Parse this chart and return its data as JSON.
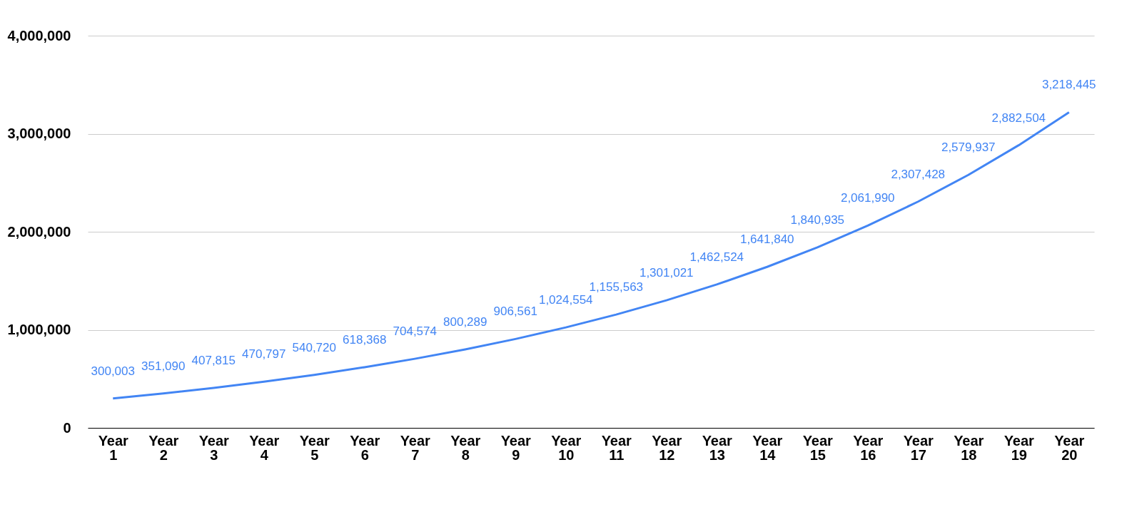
{
  "chart_data": {
    "type": "line",
    "categories": [
      "Year 1",
      "Year 2",
      "Year 3",
      "Year 4",
      "Year 5",
      "Year 6",
      "Year 7",
      "Year 8",
      "Year 9",
      "Year 10",
      "Year 11",
      "Year 12",
      "Year 13",
      "Year 14",
      "Year 15",
      "Year 16",
      "Year 17",
      "Year 18",
      "Year 19",
      "Year 20"
    ],
    "series": [
      {
        "color": "#4285f4",
        "value_labels": [
          "300,003",
          "351,090",
          "407,815",
          "470,797",
          "540,720",
          "618,368",
          "704,574",
          "800,289",
          "906,561",
          "1,024,554",
          "1,155,563",
          "1,301,021",
          "1,462,524",
          "1,641,840",
          "1,840,935",
          "2,061,990",
          "2,307,428",
          "2,579,937",
          "2,882,504",
          "3,218,445"
        ],
        "values": [
          300003,
          351090,
          407815,
          470797,
          540720,
          618368,
          704574,
          800289,
          906561,
          1024554,
          1155563,
          1301021,
          1462524,
          1641840,
          1840935,
          2061990,
          2307428,
          2579937,
          2882504,
          3218445
        ]
      }
    ],
    "ylim": [
      0,
      4000000
    ],
    "yticks": [
      {
        "value": 0,
        "label": "0"
      },
      {
        "value": 1000000,
        "label": "1,000,000"
      },
      {
        "value": 2000000,
        "label": "2,000,000"
      },
      {
        "value": 3000000,
        "label": "3,000,000"
      },
      {
        "value": 4000000,
        "label": "4,000,000"
      }
    ],
    "grid": "y",
    "marker": "none"
  }
}
